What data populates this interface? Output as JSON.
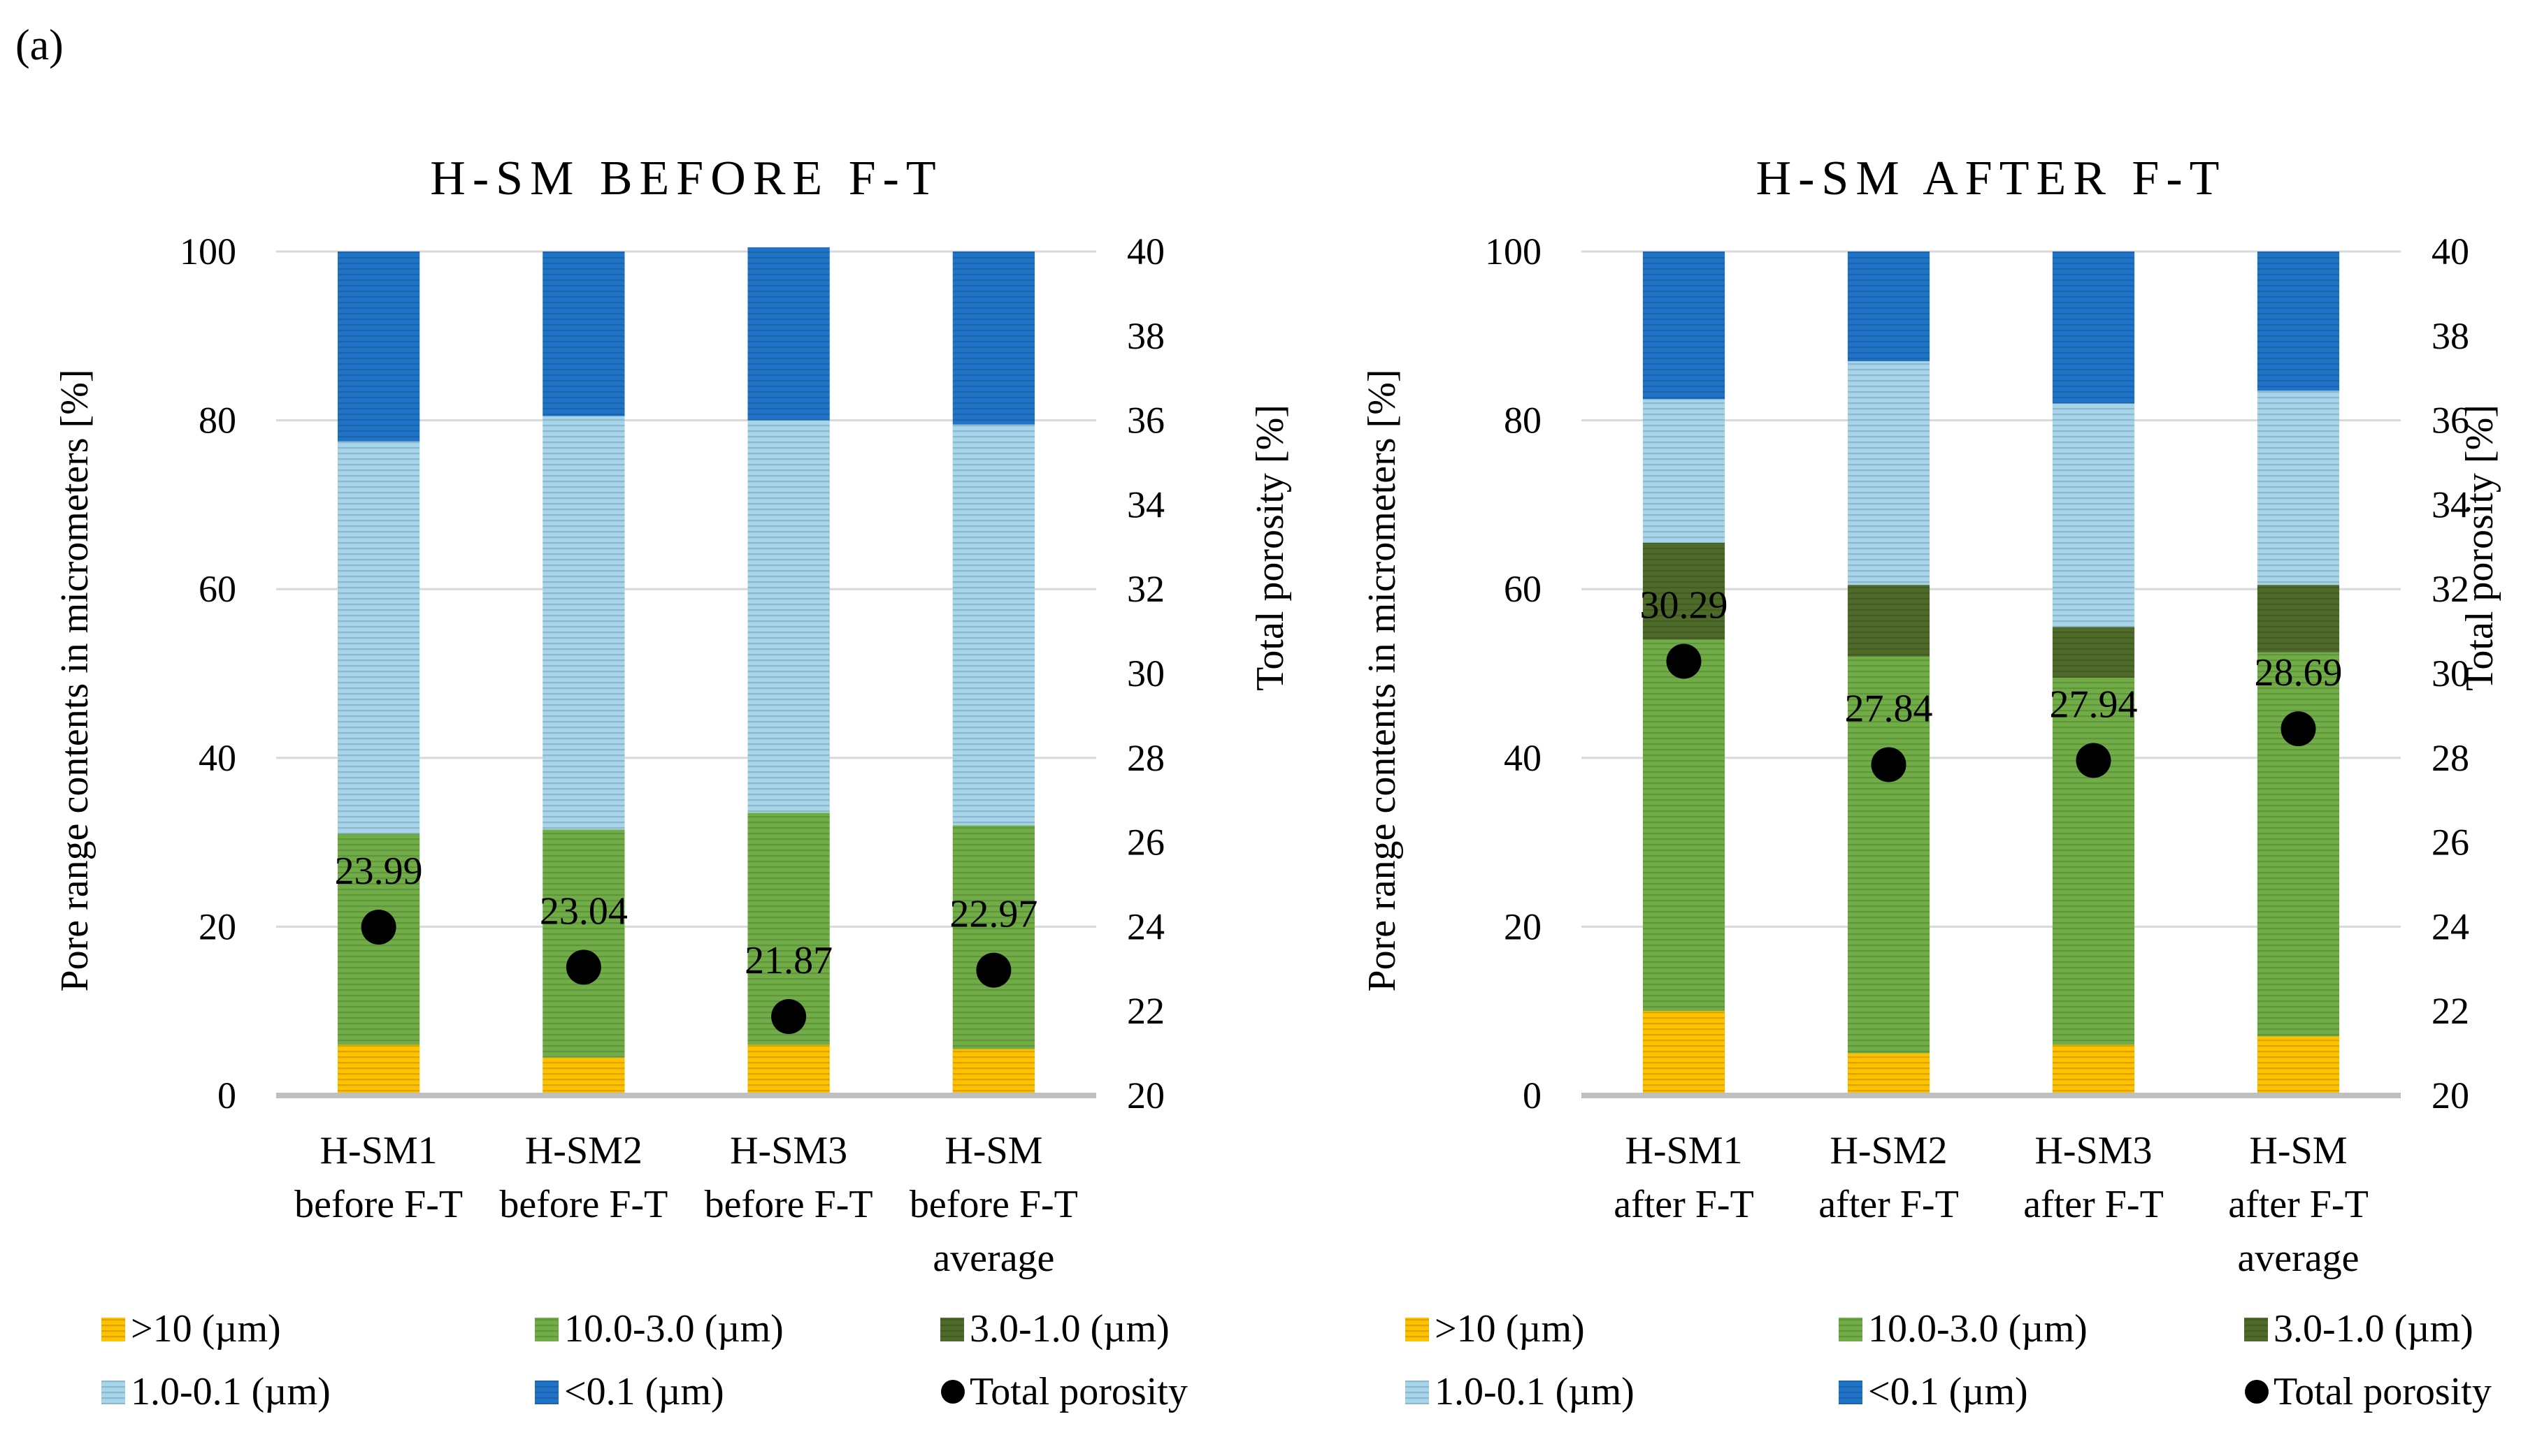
{
  "panel_label": "(a)",
  "legend_units": {
    "pore_ranges": "(µm)"
  },
  "chart_data": [
    {
      "type": "bar",
      "stacked": true,
      "title": "H-SM BEFORE F-T",
      "ylabel": "Pore range contents in micrometers  [%]",
      "y2label": "Total porosity [%]",
      "ylim": [
        0,
        100
      ],
      "y2lim": [
        20,
        40
      ],
      "yticks": [
        0,
        20,
        40,
        60,
        80,
        100
      ],
      "y2ticks": [
        20,
        22,
        24,
        26,
        28,
        30,
        32,
        34,
        36,
        38,
        40
      ],
      "categories": [
        [
          "H-SM1",
          "before F-T"
        ],
        [
          "H-SM2",
          "before F-T"
        ],
        [
          "H-SM3",
          "before F-T"
        ],
        [
          "H-SM",
          "before F-T",
          "average"
        ]
      ],
      "series": [
        {
          "name": ">10 (µm)",
          "color": "#FFC000",
          "values": [
            6.0,
            4.5,
            6.0,
            5.5
          ]
        },
        {
          "name": "10.0-3.0 (µm)",
          "color": "#70AD47",
          "values": [
            25.0,
            27.0,
            27.5,
            26.5
          ]
        },
        {
          "name": "3.0-1.0 (µm)",
          "color": "#4E6B2A",
          "values": [
            0,
            0,
            0,
            0
          ],
          "auto": true
        },
        {
          "name": "1.0-0.1 (µm)",
          "color": "#A6D5EB",
          "values": [
            46.5,
            49.0,
            46.5,
            47.5
          ]
        },
        {
          "name": "<0.1 (µm)",
          "color": "#1F74C8",
          "values": [
            22.5,
            19.5,
            20.5,
            20.5
          ]
        }
      ],
      "dark_green_values": [
        0,
        0,
        0,
        0
      ],
      "layers": [
        6.0,
        31.0,
        31.0,
        77.5
      ],
      "total_porosity": {
        "name": "Total porosity",
        "values": [
          23.99,
          23.04,
          21.87,
          22.97
        ],
        "labels": [
          "23.99",
          "23.04",
          "21.87",
          "22.97"
        ]
      },
      "legend": "bottom"
    },
    {
      "type": "bar",
      "stacked": true,
      "title": "H-SM AFTER F-T",
      "ylabel": "Pore range contents in micrometers  [%]",
      "y2label": "Total porosity [%]",
      "ylim": [
        0,
        100
      ],
      "y2lim": [
        20,
        40
      ],
      "yticks": [
        0,
        20,
        40,
        60,
        80,
        100
      ],
      "y2ticks": [
        20,
        22,
        24,
        26,
        28,
        30,
        32,
        34,
        36,
        38,
        40
      ],
      "categories": [
        [
          "H-SM1",
          "after F-T"
        ],
        [
          "H-SM2",
          "after F-T"
        ],
        [
          "H-SM3",
          "after F-T"
        ],
        [
          "H-SM",
          "after F-T",
          "average"
        ]
      ],
      "series": [
        {
          "name": ">10 (µm)",
          "color": "#FFC000",
          "values": [
            10.0,
            5.0,
            6.0,
            7.0
          ]
        },
        {
          "name": "10.0-3.0 (µm)",
          "color": "#70AD47",
          "values": [
            44.0,
            47.0,
            43.5,
            45.5
          ]
        },
        {
          "name": "3.0-1.0 (µm)",
          "color": "#4E6B2A",
          "values": [
            11.5,
            8.5,
            6.0,
            8.0
          ]
        },
        {
          "name": "1.0-0.1 (µm)",
          "color": "#A6D5EB",
          "values": [
            17.0,
            26.5,
            26.5,
            23.0
          ]
        },
        {
          "name": "<0.1 (µm)",
          "color": "#1F74C8",
          "values": [
            17.5,
            13.0,
            18.0,
            16.5
          ]
        }
      ],
      "total_porosity": {
        "name": "Total porosity",
        "values": [
          30.29,
          27.84,
          27.94,
          28.69
        ],
        "labels": [
          "30.29",
          "27.84",
          "27.94",
          "28.69"
        ]
      },
      "legend": "bottom"
    }
  ]
}
